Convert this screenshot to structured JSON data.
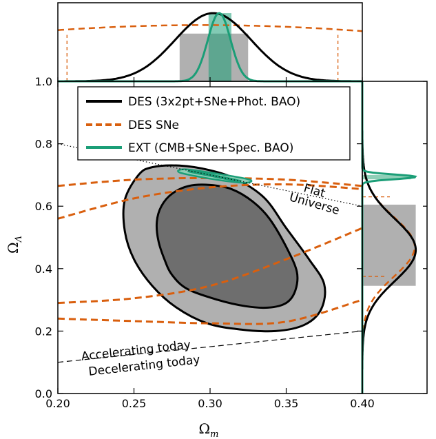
{
  "chart_data": {
    "type": "contour",
    "xlabel_symbol": "Ω",
    "xlabel_sub": "m",
    "ylabel_symbol": "Ω",
    "ylabel_sub": "Λ",
    "xlim": [
      0.2,
      0.4
    ],
    "ylim": [
      0.0,
      1.0
    ],
    "x_ticks": [
      "0.20",
      "0.25",
      "0.30",
      "0.35",
      "0.40"
    ],
    "y_ticks": [
      "0.0",
      "0.2",
      "0.4",
      "0.6",
      "0.8",
      "1.0"
    ],
    "top_panel_tick": "1.0",
    "legend_position": "top-right",
    "colors": {
      "des": "#000000",
      "des_fill_68": "#6e6e6e",
      "des_fill_95": "#b0b0b0",
      "sne": "#d95f0e",
      "ext": "#1b9e77",
      "ext_fill": "#8fcfb7"
    },
    "series": [
      {
        "name": "DES (3x2pt+SNe+Phot. BAO)",
        "style": "solid",
        "color": "#000000",
        "contour_68": [
          [
            0.268,
            0.6
          ],
          [
            0.275,
            0.64
          ],
          [
            0.286,
            0.665
          ],
          [
            0.3,
            0.668
          ],
          [
            0.314,
            0.655
          ],
          [
            0.328,
            0.615
          ],
          [
            0.339,
            0.56
          ],
          [
            0.35,
            0.47
          ],
          [
            0.357,
            0.39
          ],
          [
            0.356,
            0.33
          ],
          [
            0.35,
            0.29
          ],
          [
            0.338,
            0.275
          ],
          [
            0.323,
            0.28
          ],
          [
            0.305,
            0.3
          ],
          [
            0.285,
            0.335
          ],
          [
            0.275,
            0.38
          ],
          [
            0.27,
            0.43
          ],
          [
            0.266,
            0.49
          ],
          [
            0.265,
            0.55
          ]
        ],
        "contour_95": [
          [
            0.253,
            0.7
          ],
          [
            0.262,
            0.725
          ],
          [
            0.28,
            0.73
          ],
          [
            0.3,
            0.715
          ],
          [
            0.318,
            0.685
          ],
          [
            0.336,
            0.625
          ],
          [
            0.35,
            0.53
          ],
          [
            0.365,
            0.43
          ],
          [
            0.375,
            0.35
          ],
          [
            0.373,
            0.27
          ],
          [
            0.362,
            0.22
          ],
          [
            0.343,
            0.2
          ],
          [
            0.32,
            0.205
          ],
          [
            0.298,
            0.225
          ],
          [
            0.278,
            0.275
          ],
          [
            0.262,
            0.345
          ],
          [
            0.25,
            0.43
          ],
          [
            0.244,
            0.52
          ],
          [
            0.244,
            0.62
          ]
        ],
        "marginal_omega_m": {
          "peak": 0.302,
          "sigma": 0.025,
          "band_68": [
            0.28,
            0.325
          ]
        },
        "marginal_omega_lambda": {
          "peak": 0.46,
          "sigma": 0.1,
          "band_68": [
            0.345,
            0.605
          ]
        }
      },
      {
        "name": "DES SNe",
        "style": "dashed",
        "color": "#d95f0e",
        "contour_68": [
          [
            0.2,
            0.56
          ],
          [
            0.25,
            0.625
          ],
          [
            0.3,
            0.66
          ],
          [
            0.35,
            0.67
          ],
          [
            0.4,
            0.655
          ],
          [
            0.4,
            0.53
          ],
          [
            0.35,
            0.43
          ],
          [
            0.3,
            0.345
          ],
          [
            0.25,
            0.305
          ],
          [
            0.2,
            0.29
          ]
        ],
        "contour_95": [
          [
            0.2,
            0.665
          ],
          [
            0.25,
            0.685
          ],
          [
            0.3,
            0.69
          ],
          [
            0.35,
            0.685
          ],
          [
            0.4,
            0.665
          ],
          [
            0.4,
            0.3
          ],
          [
            0.35,
            0.23
          ],
          [
            0.3,
            0.225
          ],
          [
            0.25,
            0.232
          ],
          [
            0.2,
            0.24
          ]
        ],
        "marginal_omega_m": {
          "center": 0.295,
          "sigma": 0.22,
          "band_68": [
            0.206,
            0.384
          ]
        },
        "marginal_omega_lambda": {
          "peak": 0.47,
          "sigma": 0.095,
          "band_68": [
            0.375,
            0.63
          ]
        }
      },
      {
        "name": "EXT (CMB+SNe+Spec. BAO)",
        "style": "solid",
        "color": "#1b9e77",
        "contour_68": [
          [
            0.29,
            0.712
          ],
          [
            0.305,
            0.698
          ],
          [
            0.32,
            0.682
          ],
          [
            0.315,
            0.682
          ],
          [
            0.3,
            0.696
          ],
          [
            0.286,
            0.71
          ]
        ],
        "contour_95": [
          [
            0.284,
            0.718
          ],
          [
            0.305,
            0.704
          ],
          [
            0.326,
            0.685
          ],
          [
            0.322,
            0.675
          ],
          [
            0.3,
            0.688
          ],
          [
            0.28,
            0.708
          ]
        ],
        "marginal_omega_m": {
          "peak": 0.306,
          "sigma": 0.0075,
          "band_68": [
            0.299,
            0.314
          ]
        },
        "marginal_omega_lambda": {
          "peak": 0.694,
          "sigma": 0.0075,
          "band_68": [
            0.686,
            0.7
          ]
        }
      }
    ],
    "reference_lines": [
      {
        "name": "Flat Universe",
        "style": "dotted",
        "x": [
          0.2,
          0.4
        ],
        "y": [
          0.8,
          0.6
        ]
      },
      {
        "name": "Accelerating today / Decelerating today",
        "style": "dashed",
        "x": [
          0.2,
          0.4
        ],
        "y": [
          0.1,
          0.2
        ]
      }
    ],
    "annotations": {
      "flat_line1": "Flat",
      "flat_line2": "Universe",
      "accel": "Accelerating today",
      "decel": "Decelerating today"
    }
  }
}
